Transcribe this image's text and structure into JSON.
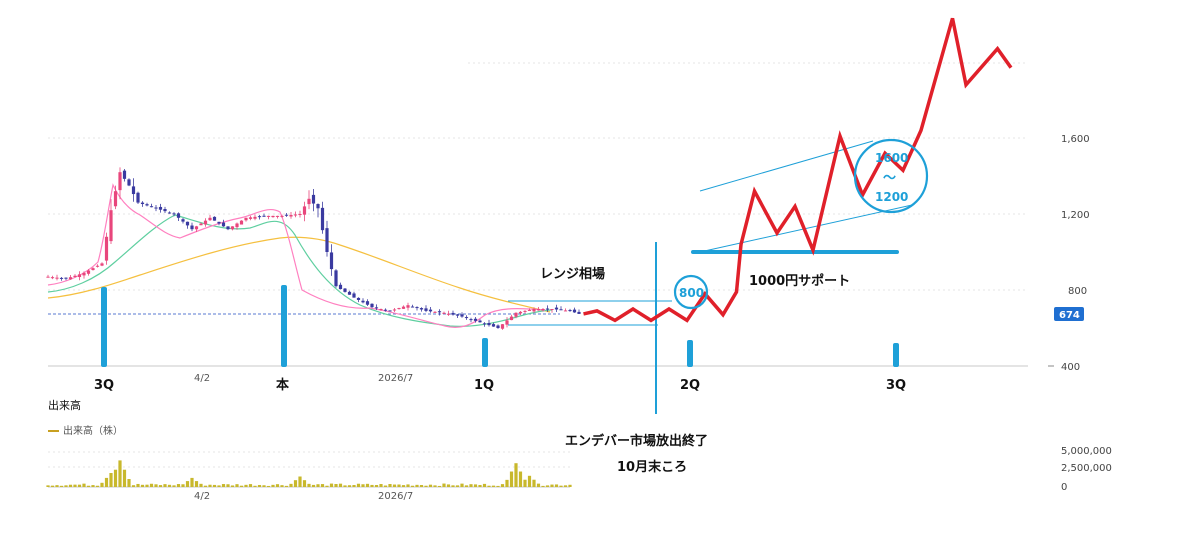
{
  "price_axis": {
    "ticks": [
      "1,600",
      "1,200",
      "800",
      "400"
    ],
    "tick_values": [
      1600,
      1200,
      800,
      400
    ],
    "current_price": "674",
    "current_price_value": 674,
    "current_price_color": "#1f6fd1"
  },
  "time_axis": {
    "labels": [
      "4/2",
      "2026/7"
    ]
  },
  "volume_panel": {
    "title": "出来高",
    "legend": "出来高（株）",
    "ticks": [
      "5,000,000",
      "2,500,000",
      "0"
    ],
    "tick_values": [
      5000000,
      2500000,
      0
    ],
    "axis_labels": [
      "4/2",
      "2026/7"
    ],
    "bar_color": "#c8b82c"
  },
  "annotations": {
    "quarter_labels": [
      "3Q",
      "本",
      "1Q",
      "2Q",
      "3Q"
    ],
    "range_label": "レンジ相場",
    "target_label": "800",
    "support_label": "1000円サポート",
    "band_top_label": "1600",
    "band_tilde": "〜",
    "band_bottom_label": "1200",
    "event_line1": "エンデバー市場放出終了",
    "event_line2": "10月末ころ",
    "colors": {
      "marker_blue": "#1ea0d8",
      "forecast_red": "#e0202a",
      "up_candle": "#e8467c",
      "down_candle": "#3a3aa0",
      "ma_short": "#ff80c0",
      "ma_mid": "#5fcfa0",
      "ma_long": "#f5c040"
    }
  },
  "chart_data": {
    "type": "line",
    "title": "",
    "price_series": [
      {
        "t": 0,
        "close": 870
      },
      {
        "t": 4,
        "close": 860
      },
      {
        "t": 8,
        "close": 890
      },
      {
        "t": 12,
        "close": 940
      },
      {
        "t": 14,
        "close": 1220
      },
      {
        "t": 16,
        "close": 1420
      },
      {
        "t": 18,
        "close": 1350
      },
      {
        "t": 20,
        "close": 1260
      },
      {
        "t": 24,
        "close": 1230
      },
      {
        "t": 28,
        "close": 1200
      },
      {
        "t": 32,
        "close": 1120
      },
      {
        "t": 36,
        "close": 1180
      },
      {
        "t": 40,
        "close": 1120
      },
      {
        "t": 44,
        "close": 1180
      },
      {
        "t": 48,
        "close": 1190
      },
      {
        "t": 52,
        "close": 1190
      },
      {
        "t": 56,
        "close": 1200
      },
      {
        "t": 58,
        "close": 1280
      },
      {
        "t": 60,
        "close": 1230
      },
      {
        "t": 62,
        "close": 1000
      },
      {
        "t": 64,
        "close": 820
      },
      {
        "t": 68,
        "close": 760
      },
      {
        "t": 72,
        "close": 710
      },
      {
        "t": 76,
        "close": 690
      },
      {
        "t": 80,
        "close": 720
      },
      {
        "t": 84,
        "close": 690
      },
      {
        "t": 88,
        "close": 680
      },
      {
        "t": 92,
        "close": 660
      },
      {
        "t": 96,
        "close": 630
      },
      {
        "t": 100,
        "close": 600
      },
      {
        "t": 104,
        "close": 680
      },
      {
        "t": 108,
        "close": 700
      },
      {
        "t": 112,
        "close": 700
      },
      {
        "t": 116,
        "close": 690
      },
      {
        "t": 118,
        "close": 674
      }
    ],
    "forecast_path": [
      {
        "t": 119,
        "price": 674
      },
      {
        "t": 122,
        "price": 690
      },
      {
        "t": 126,
        "price": 640
      },
      {
        "t": 130,
        "price": 700
      },
      {
        "t": 134,
        "price": 640
      },
      {
        "t": 138,
        "price": 700
      },
      {
        "t": 142,
        "price": 640
      },
      {
        "t": 146,
        "price": 780
      },
      {
        "t": 150,
        "price": 670
      },
      {
        "t": 153,
        "price": 790
      },
      {
        "t": 154,
        "price": 1040
      },
      {
        "t": 157,
        "price": 1320
      },
      {
        "t": 162,
        "price": 1100
      },
      {
        "t": 166,
        "price": 1240
      },
      {
        "t": 170,
        "price": 1010
      },
      {
        "t": 176,
        "price": 1610
      },
      {
        "t": 181,
        "price": 1300
      },
      {
        "t": 186,
        "price": 1520
      },
      {
        "t": 190,
        "price": 1430
      },
      {
        "t": 194,
        "price": 1640
      },
      {
        "t": 201,
        "price": 2230
      },
      {
        "t": 204,
        "price": 1880
      },
      {
        "t": 211,
        "price": 2070
      },
      {
        "t": 214,
        "price": 1970
      }
    ],
    "support_price": 1000,
    "channel_top": [
      {
        "t": 157,
        "price": 1320
      },
      {
        "t": 194,
        "price": 1600
      }
    ],
    "channel_bottom": [
      {
        "t": 157,
        "price": 1010
      },
      {
        "t": 194,
        "price": 1220
      }
    ],
    "range_box": {
      "top": 740,
      "bottom": 620
    },
    "ylim": [
      400,
      2300
    ],
    "series": [
      {
        "name": "出来高（株）",
        "peaks": [
          {
            "t": 14,
            "volume": 2000000
          },
          {
            "t": 16,
            "volume": 3800000
          },
          {
            "t": 32,
            "volume": 1300000
          },
          {
            "t": 56,
            "volume": 1500000
          },
          {
            "t": 104,
            "volume": 3400000
          },
          {
            "t": 107,
            "volume": 1600000
          }
        ]
      }
    ]
  }
}
